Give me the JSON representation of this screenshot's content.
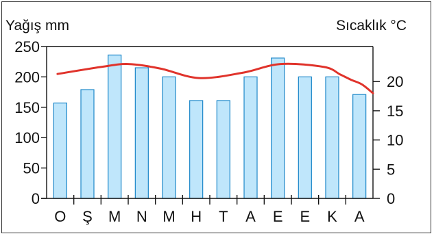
{
  "chart_data": {
    "type": "bar",
    "categories": [
      "O",
      "Ş",
      "M",
      "N",
      "M",
      "H",
      "T",
      "A",
      "E",
      "E",
      "K",
      "A"
    ],
    "series": [
      {
        "values": [
          157,
          179,
          236,
          215,
          200,
          161,
          161,
          200,
          231,
          200,
          200,
          171
        ],
        "type": "bar",
        "axis": "left"
      },
      {
        "values": [
          21.3,
          22.5,
          23.0,
          22.2,
          20.6,
          21.5,
          23.0,
          22.5,
          21.2,
          20.3,
          19.5,
          18.0
        ],
        "type": "line",
        "axis": "right",
        "x": [
          0.4,
          2.0,
          3.0,
          4.2,
          5.6,
          7.2,
          8.6,
          10.2,
          10.8,
          11.2,
          11.6,
          12.0
        ]
      }
    ],
    "ylabel_left": "Yağış mm",
    "ylabel_right": "Sıcaklık °C",
    "ylim_left": [
      0,
      250
    ],
    "yticks_left": [
      0,
      50,
      100,
      150,
      200,
      250
    ],
    "ylim_right": [
      0,
      26
    ],
    "yticks_right": [
      0,
      5,
      10,
      15,
      20
    ],
    "grid": false,
    "colors": {
      "bar_fill": "#bfe6fb",
      "bar_stroke": "#1a86c8",
      "line": "#e0332b",
      "axis": "#111111"
    }
  }
}
